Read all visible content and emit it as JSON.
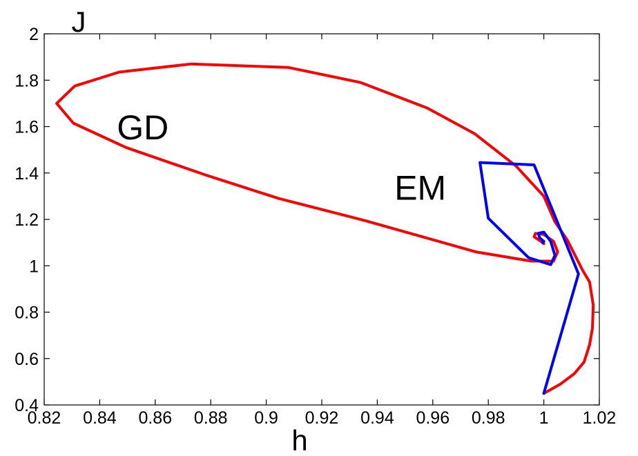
{
  "chart_data": {
    "type": "line",
    "title": "",
    "xlabel": "h",
    "ylabel": "J",
    "xlim": [
      0.82,
      1.02
    ],
    "ylim": [
      0.4,
      2.0
    ],
    "x_ticks": [
      0.82,
      0.84,
      0.86,
      0.88,
      0.9,
      0.92,
      0.94,
      0.96,
      0.98,
      1,
      1.02
    ],
    "x_tick_labels": [
      "0.82",
      "0.84",
      "0.86",
      "0.88",
      "0.9",
      "0.92",
      "0.94",
      "0.96",
      "0.98",
      "1",
      "1.02"
    ],
    "y_ticks": [
      0.4,
      0.6,
      0.8,
      1.0,
      1.2,
      1.4,
      1.6,
      1.8,
      2.0
    ],
    "y_tick_labels": [
      "0.4",
      "0.6",
      "0.8",
      "1",
      "1.2",
      "1.4",
      "1.6",
      "1.8",
      "2"
    ],
    "grid": false,
    "legend": "none",
    "series": [
      {
        "color": "#ff0000",
        "points": [
          [
            1.0,
            0.45
          ],
          [
            1.006,
            0.49
          ],
          [
            1.011,
            0.535
          ],
          [
            1.0145,
            0.585
          ],
          [
            1.0165,
            0.66
          ],
          [
            1.0175,
            0.73
          ],
          [
            1.0178,
            0.83
          ],
          [
            1.0165,
            0.93
          ],
          [
            1.014,
            0.98
          ],
          [
            1.0085,
            1.11
          ],
          [
            1.004,
            1.19
          ],
          [
            1.0,
            1.3
          ],
          [
            0.99,
            1.43
          ],
          [
            0.975,
            1.57
          ],
          [
            0.958,
            1.68
          ],
          [
            0.934,
            1.79
          ],
          [
            0.908,
            1.855
          ],
          [
            0.873,
            1.87
          ],
          [
            0.847,
            1.835
          ],
          [
            0.831,
            1.775
          ],
          [
            0.8245,
            1.7
          ],
          [
            0.8305,
            1.615
          ],
          [
            0.8495,
            1.51
          ],
          [
            0.8785,
            1.39
          ],
          [
            0.9045,
            1.29
          ],
          [
            0.9355,
            1.195
          ],
          [
            0.9755,
            1.06
          ],
          [
            0.9955,
            1.02
          ],
          [
            1.0035,
            1.02
          ],
          [
            1.005,
            1.06
          ],
          [
            1.0035,
            1.105
          ],
          [
            1.0,
            1.135
          ],
          [
            0.997,
            1.14
          ],
          [
            0.9965,
            1.125
          ],
          [
            0.999,
            1.105
          ],
          [
            1.0,
            1.095
          ]
        ]
      },
      {
        "color": "#0000ff",
        "points": [
          [
            1.0,
            0.45
          ],
          [
            1.0125,
            0.965
          ],
          [
            0.9965,
            1.435
          ],
          [
            0.977,
            1.445
          ],
          [
            0.98,
            1.205
          ],
          [
            0.9945,
            1.035
          ],
          [
            1.0025,
            1.005
          ],
          [
            1.004,
            1.045
          ],
          [
            1.0025,
            1.105
          ],
          [
            1.0,
            1.145
          ],
          [
            0.998,
            1.14
          ],
          [
            0.9985,
            1.12
          ],
          [
            1.0,
            1.105
          ],
          [
            0.9995,
            1.1
          ]
        ]
      }
    ],
    "annotations": [
      {
        "text": "GD",
        "x": 0.8555,
        "y": 1.545
      },
      {
        "text": "EM",
        "x": 0.9555,
        "y": 1.285
      }
    ]
  }
}
